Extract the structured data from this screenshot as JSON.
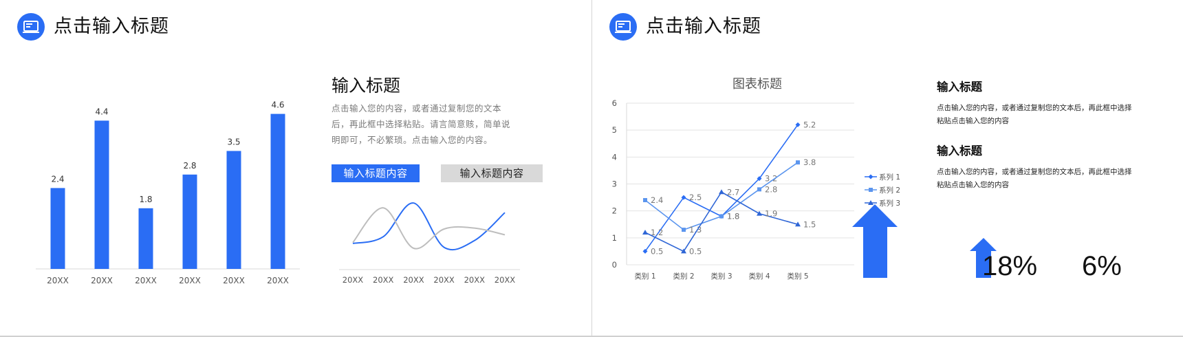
{
  "left": {
    "title": "点击输入标题",
    "side_heading": "输入标题",
    "side_body": "点击输入您的内容，或者通过复制您的文本后，再此框中选择粘贴。请言简意赅，简单说明即可，不必繁琐。点击输入您的内容。",
    "tag_primary": "输入标题内容",
    "tag_secondary": "输入标题内容"
  },
  "right": {
    "title": "点击输入标题",
    "blocks": [
      {
        "heading": "输入标题",
        "body": "点击输入您的内容，或者通过复制您的文本后，再此框中选择粘贴点击输入您的内容"
      },
      {
        "heading": "输入标题",
        "body": "点击输入您的内容，或者通过复制您的文本后，再此框中选择粘贴点击输入您的内容"
      }
    ],
    "stats": [
      {
        "value": "18%",
        "size": "large"
      },
      {
        "value": "6%",
        "size": "small"
      }
    ]
  },
  "colors": {
    "accent": "#2a6df4",
    "series1": "#2a6df4",
    "series2": "#5b95ee",
    "series3": "#2f66d6",
    "gray_line": "#bdbdbd",
    "tag_gray": "#d9d9d9"
  },
  "icons": [
    "monitor-icon",
    "arrow-up-icon"
  ],
  "chart_data": [
    {
      "type": "bar",
      "categories": [
        "20XX",
        "20XX",
        "20XX",
        "20XX",
        "20XX",
        "20XX"
      ],
      "values": [
        2.4,
        4.4,
        1.8,
        2.8,
        3.5,
        4.6
      ],
      "ylim": [
        0,
        5
      ],
      "grid": false,
      "color": "#2a6df4"
    },
    {
      "type": "line",
      "categories": [
        "20XX",
        "20XX",
        "20XX",
        "20XX",
        "20XX",
        "20XX"
      ],
      "series": [
        {
          "color": "#2a6df4",
          "values": [
            0.5,
            0.85,
            2.6,
            0.3,
            0.65,
            2.1
          ]
        },
        {
          "color": "#bdbdbd",
          "values": [
            0.55,
            2.35,
            0.25,
            1.25,
            1.3,
            0.95
          ]
        }
      ],
      "ylim": [
        0,
        3
      ],
      "smooth": true
    },
    {
      "type": "line",
      "title": "图表标题",
      "categories": [
        "类别 1",
        "类别 2",
        "类别 3",
        "类别 4",
        "类别 5"
      ],
      "series": [
        {
          "name": "系列 1",
          "marker": "diamond",
          "color": "#2a6df4",
          "values": [
            0.5,
            2.5,
            1.8,
            3.2,
            5.2
          ]
        },
        {
          "name": "系列 2",
          "marker": "square",
          "color": "#5b95ee",
          "values": [
            2.4,
            1.3,
            1.8,
            2.8,
            3.8
          ]
        },
        {
          "name": "系列 3",
          "marker": "triangle",
          "color": "#2f66d6",
          "values": [
            1.2,
            0.5,
            2.7,
            1.9,
            1.5
          ]
        }
      ],
      "yticks": [
        0,
        1,
        2,
        3,
        4,
        5,
        6
      ],
      "ylim": [
        0,
        6
      ],
      "grid": true,
      "legend": "right"
    }
  ]
}
